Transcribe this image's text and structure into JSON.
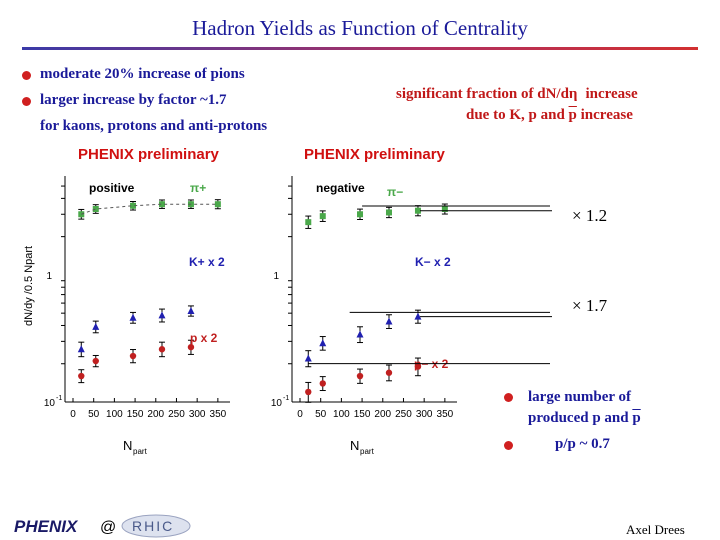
{
  "slide": {
    "title": "Hadron Yields as Function of Centrality",
    "bullets_left": [
      "moderate 20% increase of pions",
      "larger increase by factor ~1.7",
      "for kaons, protons and anti-protons"
    ],
    "note_right_line1": "significant fraction of d",
    "note_right_line2": "due to K, p and",
    "bullets_right": [
      "large number of",
      "produced p and",
      "p/p ~ 0.7"
    ],
    "factor_pi": "× 1.2",
    "factor_k": "× 1.7",
    "footer_at": "@",
    "footer_author": "Axel Drees",
    "logo_left": "PHENIX",
    "logo_right": "RHIC"
  },
  "chart_data": [
    {
      "type": "scatter",
      "title": "PHENIX preliminary",
      "label": "positive",
      "xlabel": "Npart",
      "ylabel": "dN/dy /0.5 Npart",
      "ylog": true,
      "ylim": [
        0.1,
        6
      ],
      "xlim": [
        0,
        360
      ],
      "xticks": [
        0,
        50,
        100,
        150,
        200,
        250,
        300,
        350
      ],
      "grid": false,
      "series": [
        {
          "name": "π+",
          "color": "#4aa84a",
          "marker": "square",
          "x": [
            20,
            55,
            145,
            215,
            285,
            350
          ],
          "y": [
            3.0,
            3.3,
            3.5,
            3.6,
            3.6,
            3.6
          ],
          "err": [
            0.1,
            0.08,
            0.08,
            0.08,
            0.08,
            0.1
          ]
        },
        {
          "name": "K+ x 2",
          "color": "#2020b0",
          "marker": "triangle",
          "x": [
            20,
            55,
            145,
            215,
            285
          ],
          "y": [
            0.26,
            0.39,
            0.46,
            0.48,
            0.52
          ],
          "err": [
            0.02,
            0.02,
            0.02,
            0.03,
            0.02
          ]
        },
        {
          "name": "p x 2",
          "color": "#c02020",
          "marker": "circle",
          "x": [
            20,
            55,
            145,
            215,
            285
          ],
          "y": [
            0.16,
            0.21,
            0.23,
            0.26,
            0.27
          ],
          "err": [
            0.01,
            0.01,
            0.015,
            0.02,
            0.02
          ]
        }
      ]
    },
    {
      "type": "scatter",
      "title": "PHENIX preliminary",
      "label": "negative",
      "xlabel": "Npart",
      "ylabel": "",
      "ylog": true,
      "ylim": [
        0.1,
        6
      ],
      "xlim": [
        0,
        360
      ],
      "xticks": [
        0,
        50,
        100,
        150,
        200,
        250,
        300,
        350
      ],
      "grid": false,
      "series": [
        {
          "name": "π−",
          "color": "#4aa84a",
          "marker": "square",
          "x": [
            20,
            55,
            145,
            215,
            285,
            350
          ],
          "y": [
            2.6,
            2.9,
            3.0,
            3.1,
            3.2,
            3.3
          ],
          "err": [
            0.15,
            0.12,
            0.12,
            0.12,
            0.12,
            0.12
          ]
        },
        {
          "name": "K− x 2",
          "color": "#2020b0",
          "marker": "triangle",
          "x": [
            20,
            55,
            145,
            215,
            285
          ],
          "y": [
            0.22,
            0.29,
            0.34,
            0.43,
            0.47
          ],
          "err": [
            0.02,
            0.02,
            0.03,
            0.03,
            0.03
          ]
        },
        {
          "name": "p− x 2",
          "color": "#c02020",
          "marker": "circle",
          "x": [
            20,
            55,
            145,
            215,
            285
          ],
          "y": [
            0.12,
            0.14,
            0.16,
            0.17,
            0.19
          ],
          "err": [
            0.015,
            0.01,
            0.012,
            0.015,
            0.02
          ]
        }
      ]
    }
  ]
}
